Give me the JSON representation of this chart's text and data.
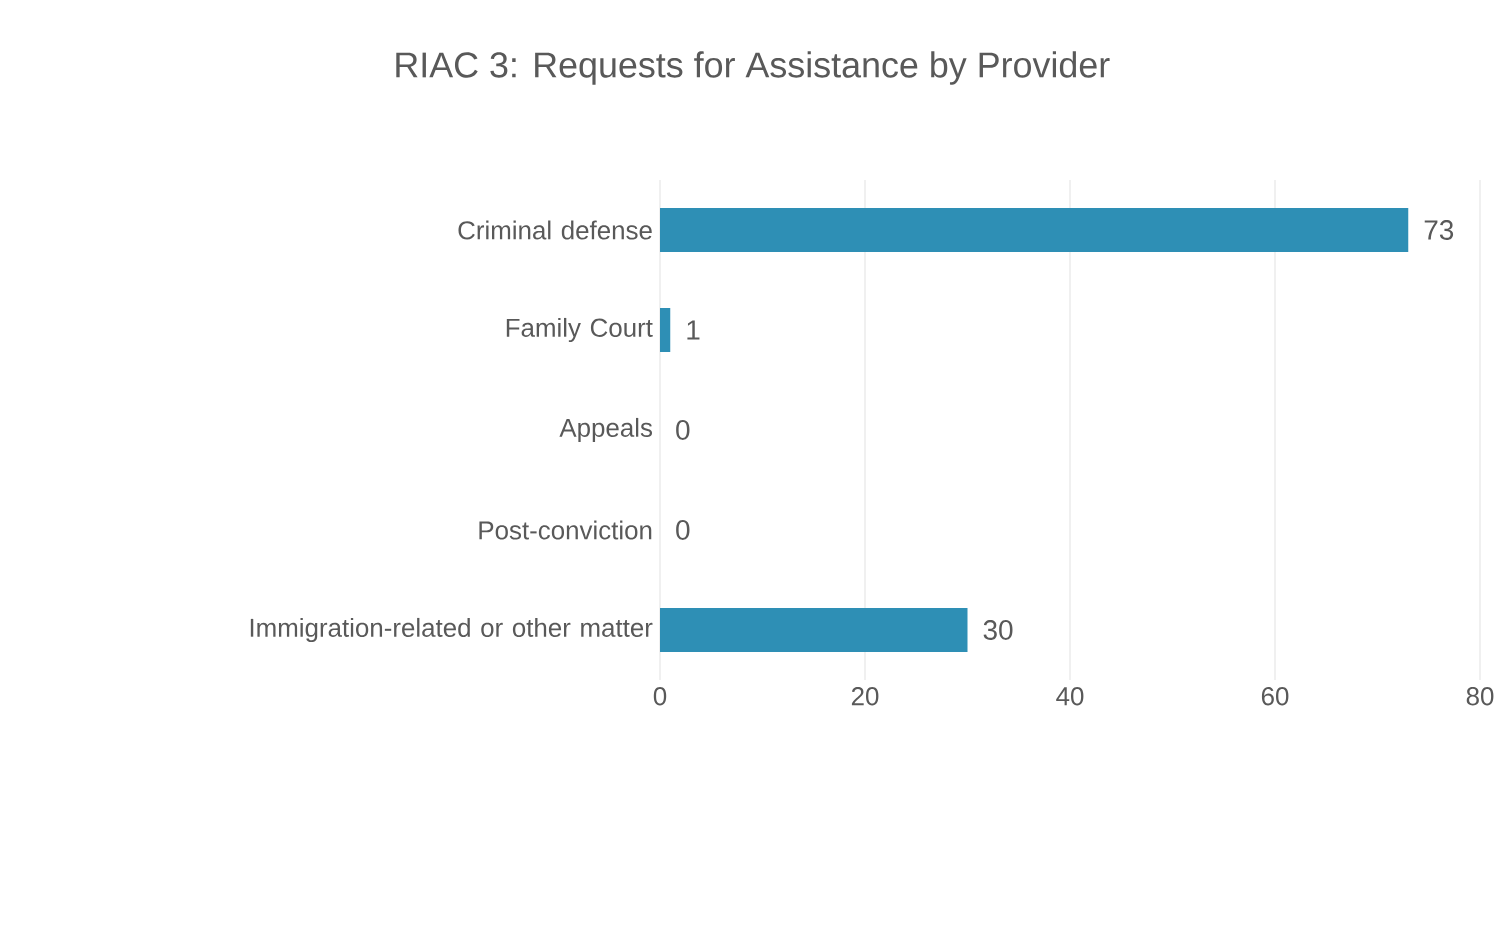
{
  "chart_data": {
    "type": "bar",
    "orientation": "horizontal",
    "title": "RIAC 3: Requests for Assistance by Provider",
    "categories": [
      "Criminal defense",
      "Family Court",
      "Appeals",
      "Post-conviction",
      "Immigration-related or other matter"
    ],
    "values": [
      73,
      1,
      0,
      0,
      30
    ],
    "color": "#2e8fb5",
    "xlim": [
      0,
      80
    ],
    "xticks": [
      0,
      20,
      40,
      60,
      80
    ],
    "grid": "x",
    "data_labels": true
  }
}
